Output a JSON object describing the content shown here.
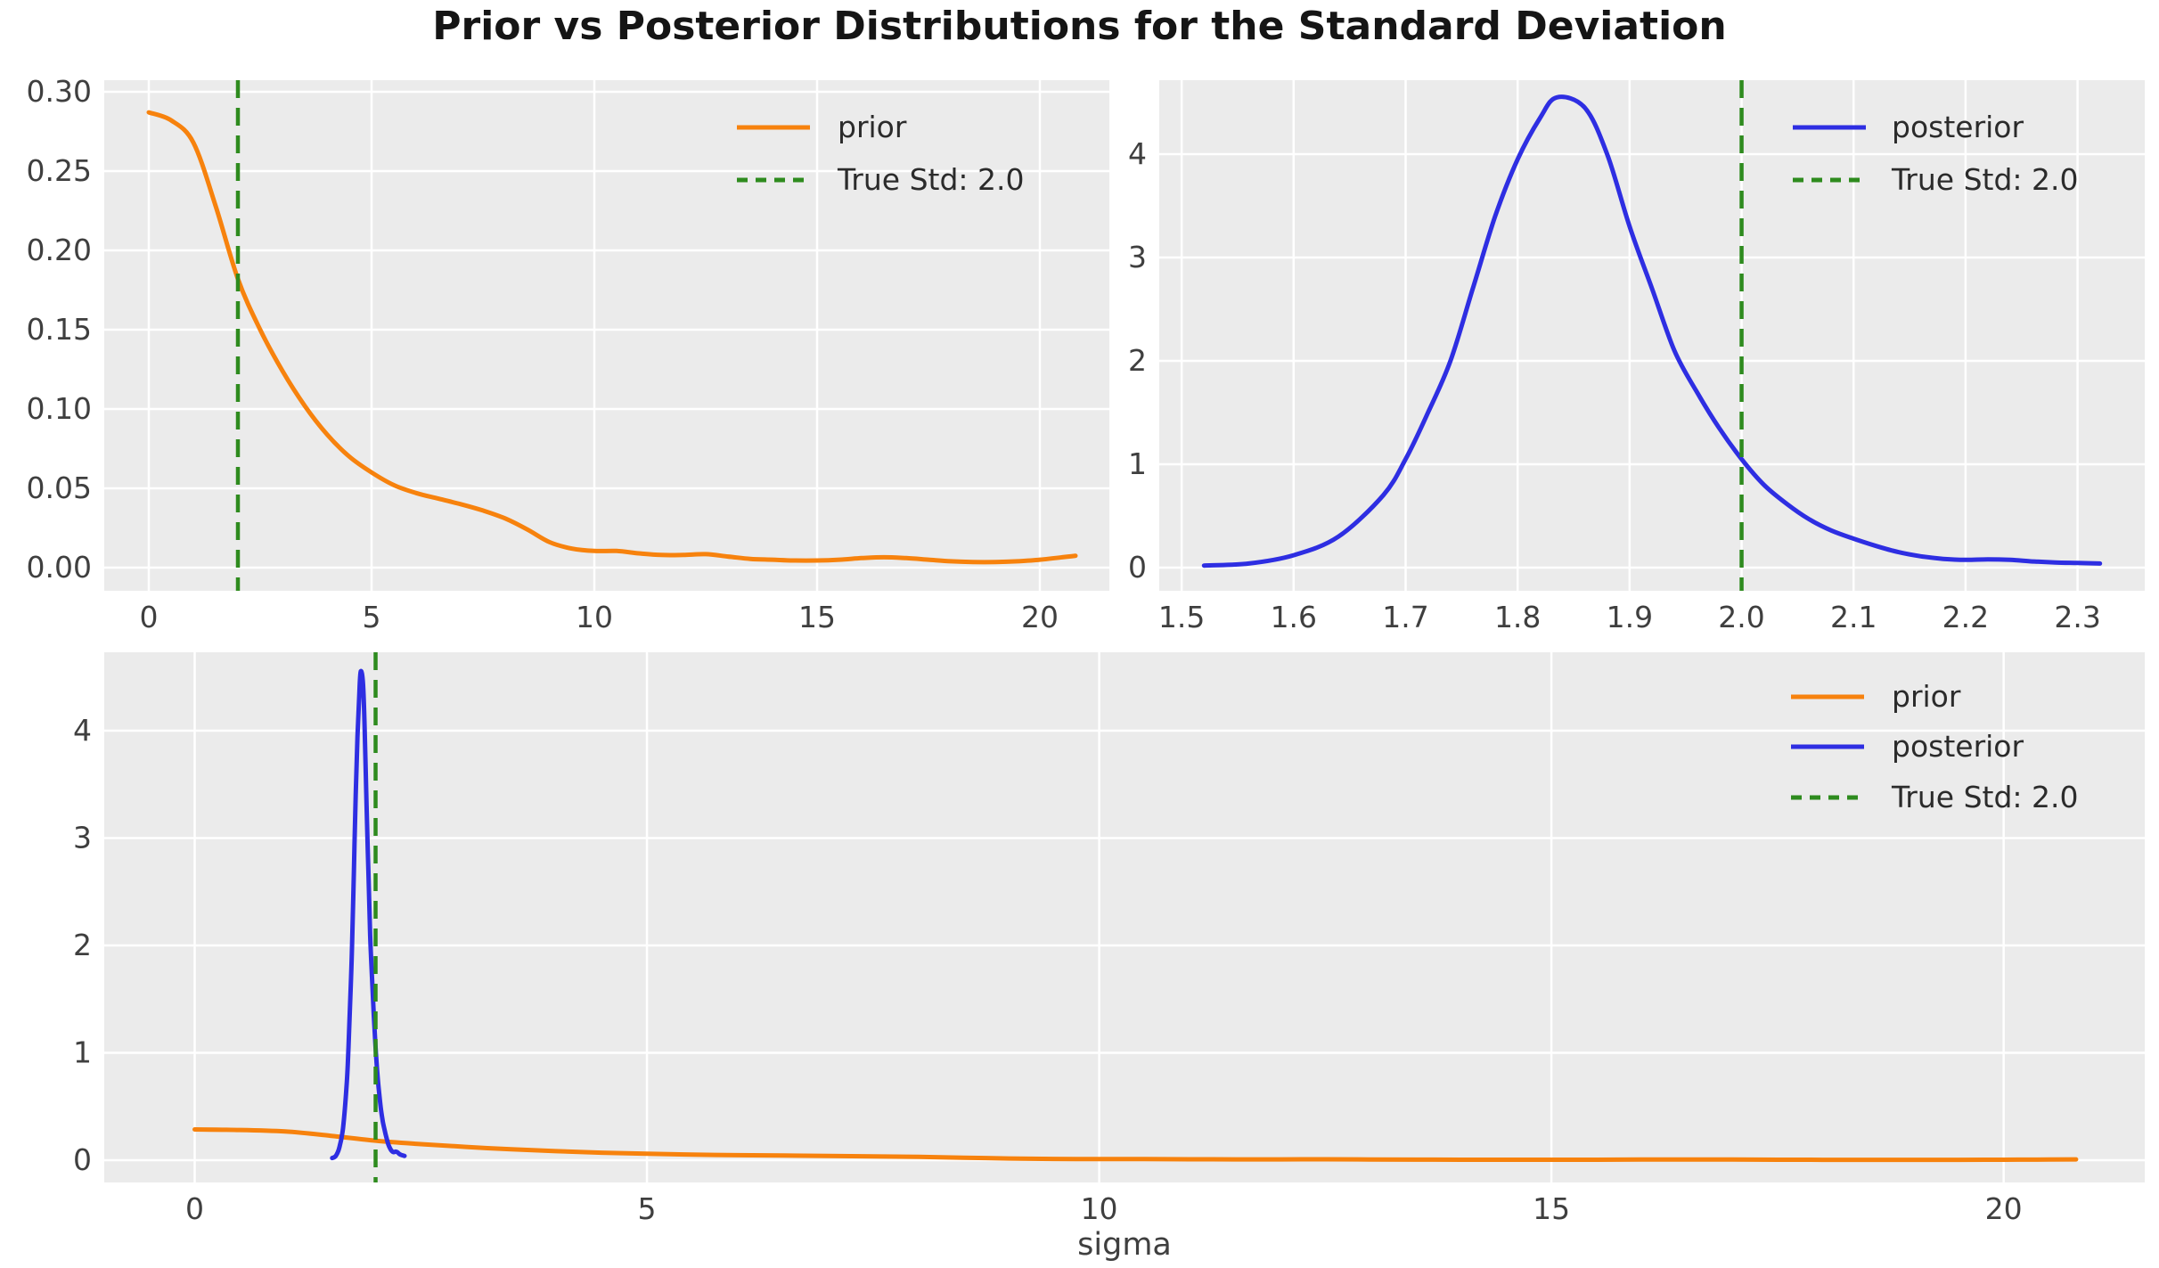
{
  "title": "Prior vs Posterior Distributions for the Standard Deviation",
  "colors": {
    "prior_orange": "#f7820d",
    "posterior_blue": "#2e2ee2",
    "true_std_green": "#2e8b1e",
    "axes_background": "#ebebeb",
    "grid_line": "#ffffff",
    "tick_text": "#3f3f3f",
    "title_text": "#151515"
  },
  "chart_data": {
    "type": "line",
    "series_data": {
      "prior": [
        [
          0,
          0.287
        ],
        [
          0.5,
          0.282
        ],
        [
          1,
          0.268
        ],
        [
          1.5,
          0.228
        ],
        [
          2,
          0.182
        ],
        [
          2.5,
          0.15
        ],
        [
          3,
          0.124
        ],
        [
          3.5,
          0.102
        ],
        [
          4,
          0.084
        ],
        [
          4.5,
          0.07
        ],
        [
          5,
          0.06
        ],
        [
          5.5,
          0.052
        ],
        [
          6,
          0.047
        ],
        [
          6.5,
          0.0435
        ],
        [
          7,
          0.04
        ],
        [
          7.5,
          0.036
        ],
        [
          8,
          0.031
        ],
        [
          8.5,
          0.024
        ],
        [
          9,
          0.016
        ],
        [
          9.5,
          0.012
        ],
        [
          10,
          0.0105
        ],
        [
          10.5,
          0.0105
        ],
        [
          11,
          0.009
        ],
        [
          11.5,
          0.008
        ],
        [
          12,
          0.008
        ],
        [
          12.5,
          0.0085
        ],
        [
          13,
          0.007
        ],
        [
          13.5,
          0.0055
        ],
        [
          14,
          0.005
        ],
        [
          14.5,
          0.0045
        ],
        [
          15,
          0.0045
        ],
        [
          15.5,
          0.005
        ],
        [
          16,
          0.006
        ],
        [
          16.5,
          0.0065
        ],
        [
          17,
          0.006
        ],
        [
          17.5,
          0.005
        ],
        [
          18,
          0.004
        ],
        [
          18.5,
          0.0035
        ],
        [
          19,
          0.0035
        ],
        [
          19.5,
          0.004
        ],
        [
          20,
          0.005
        ],
        [
          20.5,
          0.0065
        ],
        [
          20.8,
          0.0075
        ]
      ],
      "posterior": [
        [
          1.52,
          0.02
        ],
        [
          1.56,
          0.04
        ],
        [
          1.6,
          0.12
        ],
        [
          1.64,
          0.3
        ],
        [
          1.68,
          0.7
        ],
        [
          1.7,
          1.05
        ],
        [
          1.72,
          1.5
        ],
        [
          1.74,
          2.0
        ],
        [
          1.76,
          2.7
        ],
        [
          1.78,
          3.4
        ],
        [
          1.8,
          3.95
        ],
        [
          1.82,
          4.35
        ],
        [
          1.835,
          4.55
        ],
        [
          1.86,
          4.45
        ],
        [
          1.88,
          4.0
        ],
        [
          1.9,
          3.3
        ],
        [
          1.92,
          2.7
        ],
        [
          1.94,
          2.1
        ],
        [
          1.96,
          1.7
        ],
        [
          1.98,
          1.35
        ],
        [
          2.0,
          1.05
        ],
        [
          2.02,
          0.8
        ],
        [
          2.04,
          0.62
        ],
        [
          2.06,
          0.47
        ],
        [
          2.08,
          0.36
        ],
        [
          2.1,
          0.28
        ],
        [
          2.12,
          0.21
        ],
        [
          2.14,
          0.15
        ],
        [
          2.16,
          0.11
        ],
        [
          2.18,
          0.085
        ],
        [
          2.2,
          0.075
        ],
        [
          2.22,
          0.08
        ],
        [
          2.24,
          0.075
        ],
        [
          2.26,
          0.06
        ],
        [
          2.28,
          0.05
        ],
        [
          2.3,
          0.045
        ],
        [
          2.32,
          0.04
        ]
      ]
    },
    "panels": [
      {
        "name": "prior-panel",
        "xlim": [
          -1.0,
          21.56
        ],
        "ylim": [
          -0.0146,
          0.3073
        ],
        "xticks": [
          0,
          5,
          10,
          15,
          20
        ],
        "xtick_labels": [
          "0",
          "5",
          "10",
          "15",
          "20"
        ],
        "yticks": [
          0,
          0.05,
          0.1,
          0.15,
          0.2,
          0.25,
          0.3
        ],
        "ytick_labels": [
          "0.00",
          "0.05",
          "0.10",
          "0.15",
          "0.20",
          "0.25",
          "0.30"
        ],
        "xlabel": "",
        "grid": true,
        "series": [
          {
            "name": "prior",
            "color_key": "prior_orange",
            "dashed": false
          }
        ],
        "vline": {
          "x": 2.0,
          "color_key": "true_std_green"
        },
        "legend": {
          "position": "upper-right",
          "entries": [
            {
              "label": "prior",
              "color_key": "prior_orange",
              "dashed": false
            },
            {
              "label": "True Std: 2.0",
              "color_key": "true_std_green",
              "dashed": true
            }
          ]
        }
      },
      {
        "name": "posterior-panel",
        "xlim": [
          1.48,
          2.36
        ],
        "ylim": [
          -0.224,
          4.716
        ],
        "xticks": [
          1.5,
          1.6,
          1.7,
          1.8,
          1.9,
          2.0,
          2.1,
          2.2,
          2.3
        ],
        "xtick_labels": [
          "1.5",
          "1.6",
          "1.7",
          "1.8",
          "1.9",
          "2.0",
          "2.1",
          "2.2",
          "2.3"
        ],
        "yticks": [
          0,
          1,
          2,
          3,
          4
        ],
        "ytick_labels": [
          "0",
          "1",
          "2",
          "3",
          "4"
        ],
        "xlabel": "",
        "grid": true,
        "series": [
          {
            "name": "posterior",
            "color_key": "posterior_blue",
            "dashed": false
          }
        ],
        "vline": {
          "x": 2.0,
          "color_key": "true_std_green"
        },
        "legend": {
          "position": "upper-right",
          "entries": [
            {
              "label": "posterior",
              "color_key": "posterior_blue",
              "dashed": false
            },
            {
              "label": "True Std: 2.0",
              "color_key": "true_std_green",
              "dashed": true
            }
          ]
        }
      },
      {
        "name": "combined-panel",
        "xlim": [
          -1.0,
          21.56
        ],
        "ylim": [
          -0.207,
          4.73
        ],
        "xticks": [
          0,
          5,
          10,
          15,
          20
        ],
        "xtick_labels": [
          "0",
          "5",
          "10",
          "15",
          "20"
        ],
        "yticks": [
          0,
          1,
          2,
          3,
          4
        ],
        "ytick_labels": [
          "0",
          "1",
          "2",
          "3",
          "4"
        ],
        "xlabel": "sigma",
        "grid": true,
        "series": [
          {
            "name": "prior",
            "color_key": "prior_orange",
            "dashed": false
          },
          {
            "name": "posterior",
            "color_key": "posterior_blue",
            "dashed": false
          }
        ],
        "vline": {
          "x": 2.0,
          "color_key": "true_std_green"
        },
        "legend": {
          "position": "upper-right",
          "entries": [
            {
              "label": "prior",
              "color_key": "prior_orange",
              "dashed": false
            },
            {
              "label": "posterior",
              "color_key": "posterior_blue",
              "dashed": false
            },
            {
              "label": "True Std: 2.0",
              "color_key": "true_std_green",
              "dashed": true
            }
          ]
        }
      }
    ]
  }
}
